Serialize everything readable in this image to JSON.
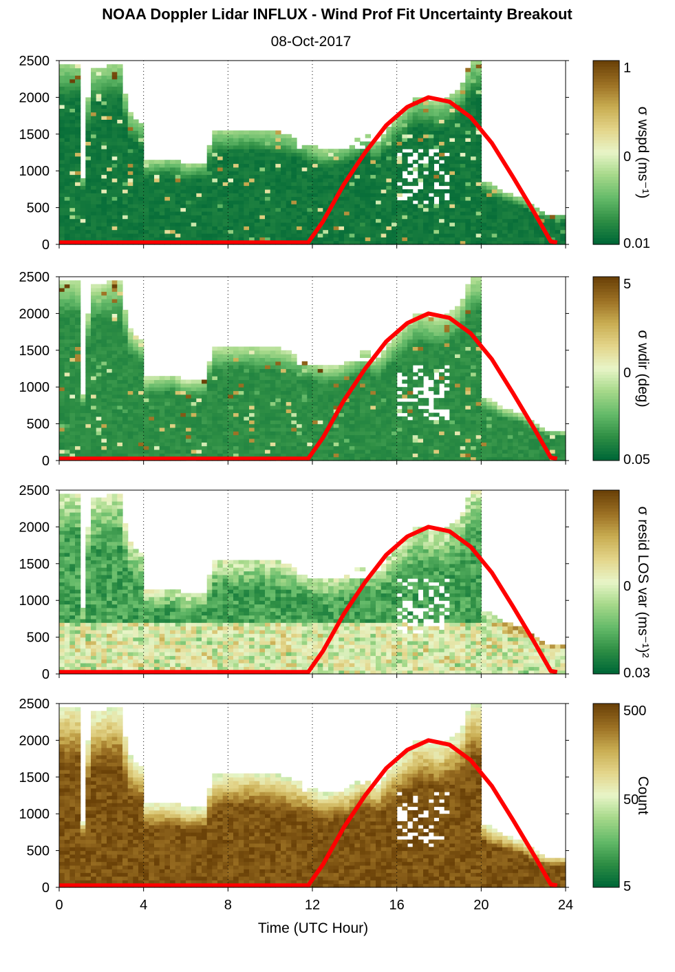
{
  "title": "NOAA Doppler Lidar INFLUX - Wind Prof Fit Uncertainty Breakout",
  "subtitle": "08-Oct-2017",
  "colors": {
    "sun_curve": "#ff0000",
    "colormap": [
      "#006837",
      "#2f8f45",
      "#66bb6a",
      "#a6d98a",
      "#e8f5c8",
      "#e3d58a",
      "#c9ad52",
      "#9c7124",
      "#6b4208"
    ]
  },
  "chart_data": [
    {
      "type": "heatmap",
      "xlabel": "",
      "ylabel": "",
      "xlim": [
        0,
        24
      ],
      "ylim": [
        0,
        2500
      ],
      "x_ticks": [
        "0",
        "4",
        "8",
        "12",
        "16",
        "20",
        "24"
      ],
      "y_ticks": [
        "0",
        "500",
        "1000",
        "1500",
        "2000",
        "2500"
      ],
      "grid": "vertical dotted lines at 4-hour intervals",
      "colorbar": {
        "label": "σ wspd (ms⁻¹)",
        "ticks": [
          "1",
          "0",
          "0.01"
        ],
        "scale": "log",
        "range": [
          0.01,
          1
        ]
      },
      "variable": "wspd"
    },
    {
      "type": "heatmap",
      "xlabel": "",
      "ylabel": "",
      "xlim": [
        0,
        24
      ],
      "ylim": [
        0,
        2500
      ],
      "x_ticks": [
        "0",
        "4",
        "8",
        "12",
        "16",
        "20",
        "24"
      ],
      "y_ticks": [
        "0",
        "500",
        "1000",
        "1500",
        "2000",
        "2500"
      ],
      "colorbar": {
        "label": "σ wdir (deg)",
        "ticks": [
          "5",
          "0",
          "0.05"
        ],
        "scale": "log",
        "range": [
          0.05,
          5
        ]
      },
      "variable": "wdir"
    },
    {
      "type": "heatmap",
      "xlabel": "",
      "ylabel": "",
      "xlim": [
        0,
        24
      ],
      "ylim": [
        0,
        2500
      ],
      "x_ticks": [
        "0",
        "4",
        "8",
        "12",
        "16",
        "20",
        "24"
      ],
      "y_ticks": [
        "0",
        "500",
        "1000",
        "1500",
        "2000",
        "2500"
      ],
      "colorbar": {
        "label": "σ resid LOS var (ms⁻¹)²",
        "ticks": [
          "0",
          "0.03"
        ],
        "scale": "log"
      },
      "variable": "resid"
    },
    {
      "type": "heatmap",
      "xlabel": "Time (UTC Hour)",
      "ylabel": "",
      "xlim": [
        0,
        24
      ],
      "ylim": [
        0,
        2500
      ],
      "x_ticks": [
        "0",
        "4",
        "8",
        "12",
        "16",
        "20",
        "24"
      ],
      "y_ticks": [
        "0",
        "500",
        "1000",
        "1500",
        "2000",
        "2500"
      ],
      "colorbar": {
        "label": "Count",
        "ticks": [
          "500",
          "50",
          "5"
        ],
        "scale": "log"
      },
      "variable": "count"
    }
  ],
  "sun_curve": {
    "x": [
      0,
      11.8,
      12.5,
      13.5,
      14.5,
      15.5,
      16.5,
      17.5,
      18.5,
      19.5,
      20.5,
      21.5,
      22.5,
      23.3,
      23.6
    ],
    "y": [
      25,
      25,
      310,
      820,
      1250,
      1620,
      1870,
      2000,
      1940,
      1730,
      1380,
      920,
      440,
      40,
      25
    ]
  }
}
